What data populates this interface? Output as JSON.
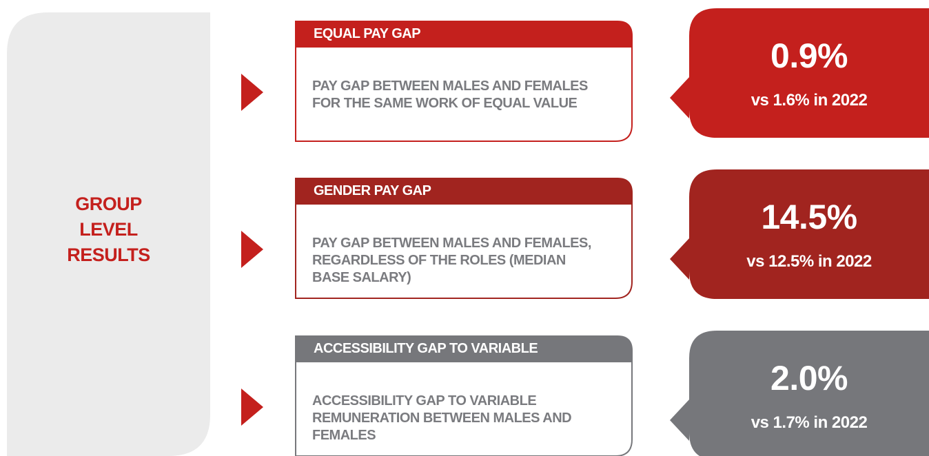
{
  "sidebar": {
    "label": [
      "GROUP",
      "LEVEL",
      "RESULTS"
    ]
  },
  "rows": [
    {
      "title": "EQUAL PAY GAP",
      "description": [
        "PAY GAP BETWEEN MALES AND FEMALES",
        "FOR THE SAME WORK OF EQUAL VALUE"
      ],
      "value": "0.9%",
      "comparison": "vs 1.6% in 2022",
      "color": "#c4201d"
    },
    {
      "title": "GENDER PAY GAP",
      "description": [
        "PAY GAP BETWEEN MALES AND FEMALES,",
        "REGARDLESS OF THE ROLES (MEDIAN",
        "BASE SALARY)"
      ],
      "value": "14.5%",
      "comparison": "vs 12.5% in 2022",
      "color": "#a1241f"
    },
    {
      "title": "ACCESSIBILITY GAP TO VARIABLE",
      "description": [
        "ACCESSIBILITY GAP TO VARIABLE",
        "REMUNERATION BETWEEN MALES AND",
        "FEMALES"
      ],
      "value": "2.0%",
      "comparison": "vs 1.7% in 2022",
      "color": "#76777b"
    }
  ]
}
